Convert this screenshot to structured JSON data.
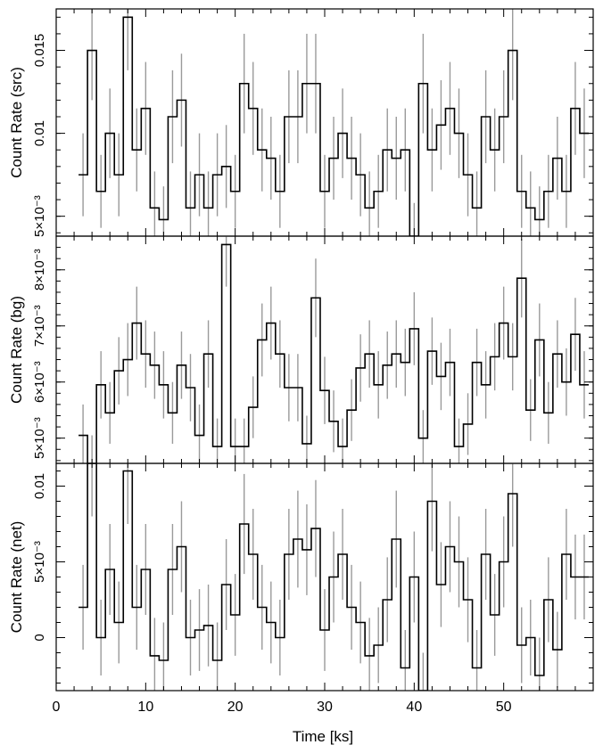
{
  "x_axis": {
    "label": "Time [ks]",
    "ticks": [
      "0",
      "10",
      "20",
      "30",
      "40",
      "50"
    ],
    "tick_values": [
      0,
      10,
      20,
      30,
      40,
      50
    ],
    "range": [
      0,
      60
    ]
  },
  "panels": [
    {
      "ylabel": "Count Rate (src)",
      "ylim": [
        0.0038,
        0.0175
      ],
      "yticks": [
        {
          "v": 0.005,
          "label": "5×10⁻³"
        },
        {
          "v": 0.01,
          "label": "0.01"
        },
        {
          "v": 0.015,
          "label": "0.015"
        }
      ],
      "values": [
        0.0075,
        0.015,
        0.0065,
        0.01,
        0.0075,
        0.017,
        0.009,
        0.0115,
        0.0055,
        0.0048,
        0.011,
        0.012,
        0.0055,
        0.0075,
        0.0055,
        0.0075,
        0.008,
        0.0065,
        0.013,
        0.0115,
        0.009,
        0.0085,
        0.0065,
        0.011,
        0.011,
        0.013,
        0.013,
        0.0065,
        0.0085,
        0.01,
        0.0085,
        0.0075,
        0.0055,
        0.0065,
        0.009,
        0.0085,
        0.009,
        0.0038,
        0.013,
        0.009,
        0.0105,
        0.0115,
        0.01,
        0.0075,
        0.0055,
        0.011,
        0.009,
        0.011,
        0.015,
        0.0065,
        0.0055,
        0.0048,
        0.0065,
        0.0085,
        0.0065,
        0.0115,
        0.01
      ],
      "errors": [
        0.0025,
        0.003,
        0.0022,
        0.0027,
        0.0025,
        0.0032,
        0.0025,
        0.0028,
        0.0022,
        0.002,
        0.0028,
        0.0028,
        0.0022,
        0.0025,
        0.0022,
        0.0025,
        0.0025,
        0.0022,
        0.003,
        0.0028,
        0.0025,
        0.0025,
        0.0022,
        0.0028,
        0.0028,
        0.003,
        0.003,
        0.0022,
        0.0025,
        0.0027,
        0.0025,
        0.0025,
        0.0022,
        0.0022,
        0.0025,
        0.0025,
        0.0025,
        0.002,
        0.003,
        0.0025,
        0.0027,
        0.0028,
        0.0027,
        0.0025,
        0.0022,
        0.0028,
        0.0025,
        0.0028,
        0.003,
        0.0022,
        0.0022,
        0.002,
        0.0022,
        0.0025,
        0.0022,
        0.0028,
        0.0027
      ]
    },
    {
      "ylabel": "Count Rate (bg)",
      "ylim": [
        4.55,
        8.6
      ],
      "yticks": [
        {
          "v": 5,
          "label": "5×10⁻³"
        },
        {
          "v": 6,
          "label": "6×10⁻³"
        },
        {
          "v": 7,
          "label": "7×10⁻³"
        },
        {
          "v": 8,
          "label": "8×10⁻³"
        }
      ],
      "values": [
        5.05,
        4.55,
        5.95,
        5.45,
        6.2,
        6.4,
        7.05,
        6.5,
        6.3,
        5.95,
        5.45,
        6.3,
        5.9,
        5.05,
        6.5,
        4.85,
        8.45,
        4.85,
        4.85,
        5.55,
        6.75,
        7.05,
        6.5,
        5.9,
        5.9,
        4.9,
        7.5,
        5.85,
        5.3,
        4.85,
        5.5,
        6.25,
        6.5,
        5.95,
        6.3,
        6.5,
        6.35,
        6.95,
        5,
        6.55,
        6.1,
        6.35,
        4.85,
        5.25,
        6.35,
        5.95,
        6.45,
        7.05,
        6.45,
        7.85,
        5.5,
        6.75,
        5.45,
        6.5,
        6,
        6.85,
        5.95
      ],
      "errors": [
        0.55,
        0.5,
        0.6,
        0.55,
        0.6,
        0.65,
        0.65,
        0.6,
        0.6,
        0.6,
        0.55,
        0.6,
        0.6,
        0.55,
        0.6,
        0.5,
        0.75,
        0.5,
        0.5,
        0.55,
        0.65,
        0.65,
        0.6,
        0.6,
        0.6,
        0.5,
        0.7,
        0.6,
        0.55,
        0.5,
        0.55,
        0.6,
        0.6,
        0.6,
        0.6,
        0.6,
        0.6,
        0.65,
        0.5,
        0.6,
        0.6,
        0.6,
        0.5,
        0.55,
        0.6,
        0.6,
        0.6,
        0.65,
        0.6,
        0.7,
        0.55,
        0.65,
        0.55,
        0.6,
        0.6,
        0.65,
        0.6
      ]
    },
    {
      "ylabel": "Count Rate (net)",
      "ylim": [
        -0.0035,
        0.0115
      ],
      "yticks": [
        {
          "v": 0,
          "label": "0"
        },
        {
          "v": 0.005,
          "label": "5×10⁻³"
        },
        {
          "v": 0.01,
          "label": "0.01"
        }
      ],
      "values": [
        0.002,
        0.0115,
        0,
        0.0045,
        0.001,
        0.011,
        0.002,
        0.0045,
        -0.0012,
        -0.0015,
        0.0045,
        0.006,
        0,
        0.0005,
        0.0008,
        -0.0015,
        0.0035,
        0.0015,
        0.0075,
        0.0055,
        0.002,
        0.001,
        0,
        0.0055,
        0.0065,
        0.0058,
        0.0072,
        0.0005,
        0.004,
        0.0055,
        0.002,
        0.001,
        -0.0012,
        -0.0005,
        0.0025,
        0.0065,
        -0.002,
        0.004,
        -0.0035,
        0.009,
        0.0035,
        0.006,
        0.005,
        0.0025,
        -0.002,
        0.0055,
        0.0015,
        0.005,
        0.0095,
        -0.0005,
        0,
        -0.0025,
        0.0025,
        -0.0008,
        0.0055,
        0.004,
        0.004
      ],
      "errors": [
        0.0028,
        0.0035,
        0.0025,
        0.003,
        0.0027,
        0.0035,
        0.0028,
        0.003,
        0.0025,
        0.0025,
        0.003,
        0.003,
        0.0025,
        0.0027,
        0.0027,
        0.0025,
        0.003,
        0.0027,
        0.0033,
        0.003,
        0.0028,
        0.0027,
        0.0025,
        0.003,
        0.0032,
        0.003,
        0.0032,
        0.0027,
        0.003,
        0.003,
        0.0028,
        0.0027,
        0.0025,
        0.0025,
        0.0028,
        0.0032,
        0.0025,
        0.003,
        0.0025,
        0.0033,
        0.0028,
        0.003,
        0.003,
        0.0028,
        0.0025,
        0.003,
        0.0027,
        0.003,
        0.0035,
        0.0025,
        0.0025,
        0.0025,
        0.0028,
        0.0025,
        0.003,
        0.0028,
        0.0028
      ]
    }
  ],
  "chart_data": [
    {
      "type": "line",
      "ylabel": "Count Rate (src)",
      "xlabel": "Time [ks]",
      "x_start": 2.5,
      "bin_width": 1,
      "values": [
        0.0075,
        0.015,
        0.0065,
        0.01,
        0.0075,
        0.017,
        0.009,
        0.0115,
        0.0055,
        0.0048,
        0.011,
        0.012,
        0.0055,
        0.0075,
        0.0055,
        0.0075,
        0.008,
        0.0065,
        0.013,
        0.0115,
        0.009,
        0.0085,
        0.0065,
        0.011,
        0.011,
        0.013,
        0.013,
        0.0065,
        0.0085,
        0.01,
        0.0085,
        0.0075,
        0.0055,
        0.0065,
        0.009,
        0.0085,
        0.009,
        0.0038,
        0.013,
        0.009,
        0.0105,
        0.0115,
        0.01,
        0.0075,
        0.0055,
        0.011,
        0.009,
        0.011,
        0.015,
        0.0065,
        0.0055,
        0.0048,
        0.0065,
        0.0085,
        0.0065,
        0.0115,
        0.01
      ]
    },
    {
      "type": "line",
      "ylabel": "Count Rate (bg)",
      "xlabel": "Time [ks]",
      "x_start": 2.5,
      "bin_width": 1,
      "values_x1e-3": [
        5.05,
        4.55,
        5.95,
        5.45,
        6.2,
        6.4,
        7.05,
        6.5,
        6.3,
        5.95,
        5.45,
        6.3,
        5.9,
        5.05,
        6.5,
        4.85,
        8.45,
        4.85,
        4.85,
        5.55,
        6.75,
        7.05,
        6.5,
        5.9,
        5.9,
        4.9,
        7.5,
        5.85,
        5.3,
        4.85,
        5.5,
        6.25,
        6.5,
        5.95,
        6.3,
        6.5,
        6.35,
        6.95,
        5,
        6.55,
        6.1,
        6.35,
        4.85,
        5.25,
        6.35,
        5.95,
        6.45,
        7.05,
        6.45,
        7.85,
        5.5,
        6.75,
        5.45,
        6.5,
        6,
        6.85,
        5.95
      ]
    },
    {
      "type": "line",
      "ylabel": "Count Rate (net)",
      "xlabel": "Time [ks]",
      "x_start": 2.5,
      "bin_width": 1,
      "values": [
        0.002,
        0.0115,
        0,
        0.0045,
        0.001,
        0.011,
        0.002,
        0.0045,
        -0.0012,
        -0.0015,
        0.0045,
        0.006,
        0,
        0.0005,
        0.0008,
        -0.0015,
        0.0035,
        0.0015,
        0.0075,
        0.0055,
        0.002,
        0.001,
        0,
        0.0055,
        0.0065,
        0.0058,
        0.0072,
        0.0005,
        0.004,
        0.0055,
        0.002,
        0.001,
        -0.0012,
        -0.0005,
        0.0025,
        0.0065,
        -0.002,
        0.004,
        -0.0035,
        0.009,
        0.0035,
        0.006,
        0.005,
        0.0025,
        -0.002,
        0.0055,
        0.0015,
        0.005,
        0.0095,
        -0.0005,
        0,
        -0.0025,
        0.0025,
        -0.0008,
        0.0055,
        0.004,
        0.004
      ]
    }
  ]
}
